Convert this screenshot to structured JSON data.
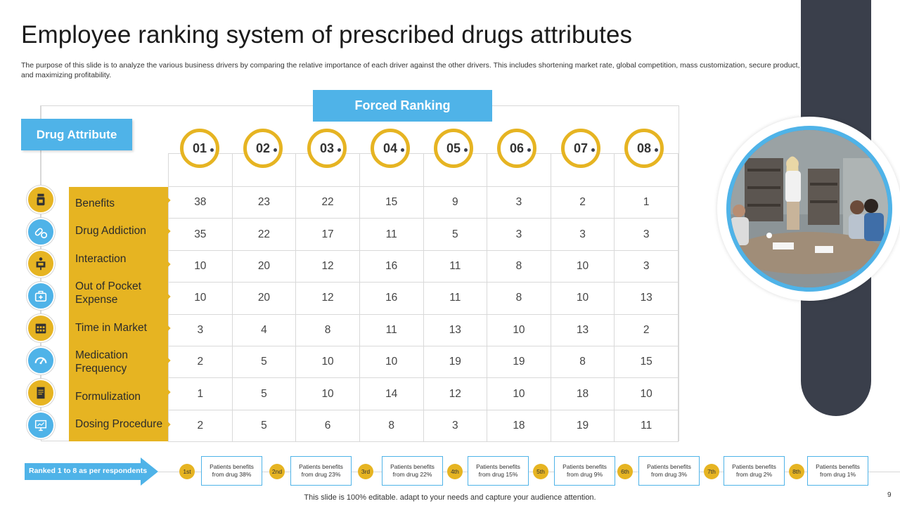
{
  "title": "Employee ranking system of prescribed drugs attributes",
  "subtitle": "The purpose of this slide is to analyze the various business drivers by comparing the relative importance of each driver against the other drivers. This includes shortening market rate, global competition, mass customization, secure product, and maximizing profitability.",
  "forced_ranking_label": "Forced Ranking",
  "drug_attribute_label": "Drug Attribute",
  "columns": [
    "01",
    "02",
    "03",
    "04",
    "05",
    "06",
    "07",
    "08"
  ],
  "attributes": [
    {
      "label": "Benefits",
      "icon": "pill-bottle-icon",
      "values": [
        "38",
        "23",
        "22",
        "15",
        "9",
        "3",
        "2",
        "1"
      ]
    },
    {
      "label": "Drug Addiction",
      "icon": "capsules-icon",
      "values": [
        "35",
        "22",
        "17",
        "11",
        "5",
        "3",
        "3",
        "3"
      ]
    },
    {
      "label": "Interaction",
      "icon": "presentation-icon",
      "values": [
        "10",
        "20",
        "12",
        "16",
        "11",
        "8",
        "10",
        "3"
      ]
    },
    {
      "label": "Out of Pocket Expense",
      "icon": "medical-bag-icon",
      "values": [
        "10",
        "20",
        "12",
        "16",
        "11",
        "8",
        "10",
        "13"
      ]
    },
    {
      "label": "Time in Market",
      "icon": "calendar-icon",
      "values": [
        "3",
        "4",
        "8",
        "11",
        "13",
        "10",
        "13",
        "2"
      ]
    },
    {
      "label": "Medication Frequency",
      "icon": "gauge-icon",
      "values": [
        "2",
        "5",
        "10",
        "10",
        "19",
        "19",
        "8",
        "15"
      ]
    },
    {
      "label": "Formulization",
      "icon": "document-icon",
      "values": [
        "1",
        "5",
        "10",
        "14",
        "12",
        "10",
        "18",
        "10"
      ]
    },
    {
      "label": "Dosing Procedure",
      "icon": "chart-board-icon",
      "values": [
        "2",
        "5",
        "6",
        "8",
        "3",
        "18",
        "19",
        "11"
      ]
    }
  ],
  "ranked_label": "Ranked 1 to 8 as per respondents",
  "ranks": [
    {
      "badge": "1st",
      "text": "Patients benefits from drug 38%"
    },
    {
      "badge": "2nd",
      "text": "Patients benefits from drug 23%"
    },
    {
      "badge": "3rd",
      "text": "Patients benefits from drug 22%"
    },
    {
      "badge": "4th",
      "text": "Patients benefits from drug 15%"
    },
    {
      "badge": "5th",
      "text": "Patients benefits from drug 9%"
    },
    {
      "badge": "6th",
      "text": "Patients benefits from drug 3%"
    },
    {
      "badge": "7th",
      "text": "Patients benefits from drug 2%"
    },
    {
      "badge": "8th",
      "text": "Patients benefits from drug 1%"
    }
  ],
  "footer": "This slide is 100% editable. adapt to your needs and capture your audience attention.",
  "page_number": "9",
  "colors": {
    "accent_yellow": "#e6b422",
    "accent_blue": "#4fb3e8",
    "dark": "#3a3f4b"
  }
}
